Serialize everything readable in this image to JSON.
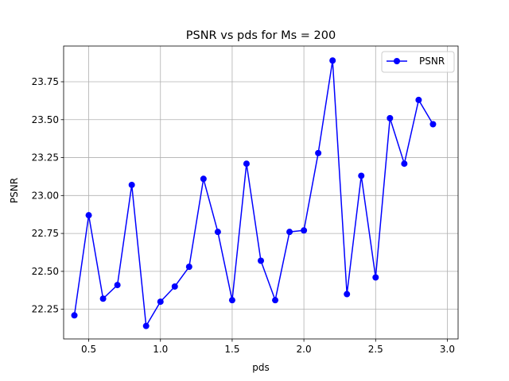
{
  "chart_data": {
    "type": "line",
    "title": "PSNR vs pds for Ms = 200",
    "xlabel": "pds",
    "ylabel": "PSNR",
    "xlim": [
      0.325,
      3.075
    ],
    "ylim": [
      22.0545,
      23.9855
    ],
    "grid": true,
    "legend_position": "top-right",
    "x_ticks": [
      "0.5",
      "1.0",
      "1.5",
      "2.0",
      "2.5",
      "3.0"
    ],
    "y_ticks": [
      "22.25",
      "22.50",
      "22.75",
      "23.00",
      "23.25",
      "23.50",
      "23.75"
    ],
    "x": [
      0.4,
      0.5,
      0.6,
      0.7,
      0.8,
      0.9,
      1.0,
      1.1,
      1.2,
      1.3,
      1.4,
      1.5,
      1.6,
      1.7,
      1.8,
      1.9,
      2.0,
      2.1,
      2.2,
      2.3,
      2.4,
      2.5,
      2.6,
      2.7,
      2.8,
      2.9
    ],
    "series": [
      {
        "name": "PSNR",
        "color": "#0000ff",
        "marker": "circle",
        "values": [
          22.21,
          22.87,
          22.32,
          22.41,
          23.07,
          22.14,
          22.3,
          22.4,
          22.53,
          23.11,
          22.76,
          22.31,
          23.21,
          22.57,
          22.31,
          22.76,
          22.77,
          23.28,
          23.89,
          22.35,
          23.13,
          22.46,
          23.51,
          23.21,
          23.63,
          23.47
        ]
      }
    ]
  }
}
